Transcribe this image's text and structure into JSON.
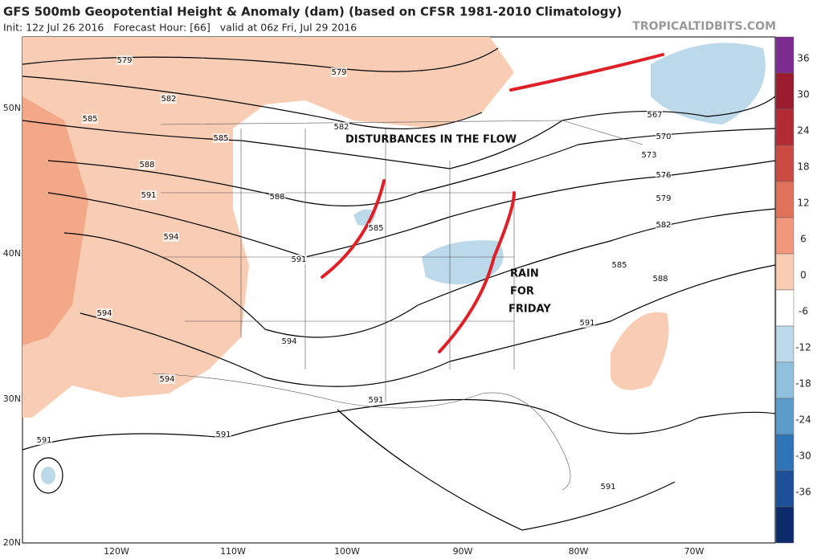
{
  "header": {
    "title": "GFS 500mb Geopotential Height & Anomaly (dam) (based on CFSR 1981-2010 Climatology)",
    "subtitle": "Init: 12z Jul 26 2016   Forecast Hour: [66]   valid at 06z Fri, Jul 29 2016",
    "credit": "TROPICALTIDBITS.COM"
  },
  "map": {
    "lat_labels": [
      "50N",
      "40N",
      "30N",
      "20N"
    ],
    "lon_labels": [
      "120W",
      "110W",
      "100W",
      "90W",
      "80W",
      "70W"
    ],
    "contour_labels": [
      "579",
      "579",
      "582",
      "585",
      "582",
      "585",
      "588",
      "591",
      "588",
      "594",
      "585",
      "591",
      "594",
      "594",
      "594",
      "591",
      "591",
      "591",
      "591",
      "567",
      "570",
      "573",
      "576",
      "579",
      "582",
      "585",
      "588",
      "591"
    ],
    "annotations": [
      "DISTURBANCES IN THE FLOW",
      "RAIN",
      "FOR",
      "FRIDAY"
    ]
  },
  "colorbar": {
    "ticks": [
      "36",
      "30",
      "24",
      "18",
      "12",
      "6",
      "0",
      "-6",
      "-12",
      "-18",
      "-24",
      "-30",
      "-36"
    ]
  }
}
